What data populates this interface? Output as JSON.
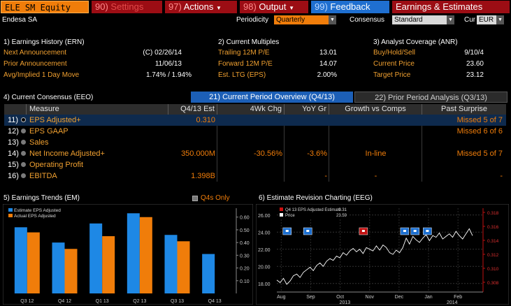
{
  "toolbar": {
    "ticker": "ELE SM Equity",
    "settings_num": "90)",
    "settings_label": "Settings",
    "actions_num": "97)",
    "actions_label": "Actions",
    "output_num": "98)",
    "output_label": "Output",
    "feedback_num": "99)",
    "feedback_label": "Feedback",
    "title": "Earnings & Estimates"
  },
  "company": "Endesa SA",
  "controls": {
    "periodicity_label": "Periodicity",
    "periodicity_value": "Quarterly",
    "consensus_label": "Consensus",
    "consensus_value": "Standard",
    "cur_label": "Cur",
    "cur_value": "EUR"
  },
  "ern": {
    "title": "1) Earnings History (ERN)",
    "rows": [
      {
        "label": "Next Announcement",
        "value": "(C)  02/26/14"
      },
      {
        "label": "Prior Announcement",
        "value": "11/06/13"
      },
      {
        "label": "Avg/Implied 1 Day Move",
        "value": "1.74% / 1.94%"
      }
    ]
  },
  "multiples": {
    "title": "2) Current Multiples",
    "rows": [
      {
        "label": "Trailing 12M P/E",
        "value": "13.01"
      },
      {
        "label": "Forward 12M P/E",
        "value": "14.07"
      },
      {
        "label": "Est. LTG (EPS)",
        "value": "2.00%"
      }
    ]
  },
  "anr": {
    "title": "3) Analyst Coverage (ANR)",
    "rows": [
      {
        "label": "Buy/Hold/Sell",
        "value": "9/10/4"
      },
      {
        "label": "Current Price",
        "value": "23.60"
      },
      {
        "label": "Target Price",
        "value": "23.12"
      }
    ]
  },
  "consensus": {
    "title": "4) Current Consensus (EEO)",
    "tab1": "21) Current Period Overview (Q4/13)",
    "tab2": "22) Prior Period Analysis (Q3/13)",
    "headers": [
      "Measure",
      "Q4/13 Est",
      "4Wk Chg",
      "YoY Gr",
      "Growth vs Comps",
      "Past Surprise"
    ],
    "rows": [
      {
        "num": "11)",
        "measure": "EPS Adjusted+",
        "est": "0.310",
        "chg": "",
        "yoy": "",
        "comps": "",
        "surprise": "Missed 5 of 7"
      },
      {
        "num": "12)",
        "measure": "EPS GAAP",
        "est": "",
        "chg": "",
        "yoy": "",
        "comps": "",
        "surprise": "Missed 6 of 6"
      },
      {
        "num": "13)",
        "measure": "Sales",
        "est": "",
        "chg": "",
        "yoy": "",
        "comps": "",
        "surprise": ""
      },
      {
        "num": "14)",
        "measure": "Net Income Adjusted+",
        "est": "350.000M",
        "chg": "-30.56%",
        "yoy": "-3.6%",
        "comps": "In-line",
        "surprise": "Missed 5 of 7"
      },
      {
        "num": "15)",
        "measure": "Operating Profit",
        "est": "",
        "chg": "",
        "yoy": "",
        "comps": "",
        "surprise": ""
      },
      {
        "num": "16)",
        "measure": "EBITDA",
        "est": "1.398B",
        "chg": "",
        "yoy": "-",
        "comps": "-",
        "surprise": "-"
      }
    ]
  },
  "trends": {
    "title": "5) Earnings Trends (EM)",
    "q4_only": "Q4s Only"
  },
  "revision": {
    "title": "6) Estimate Revision Charting (EEG)"
  },
  "chart_data": [
    {
      "type": "bar",
      "categories": [
        "Q3 12",
        "Q4 12",
        "Q1 13",
        "Q2 13",
        "Q3 13",
        "Q4 13"
      ],
      "series": [
        {
          "name": "Estimate EPS Adjusted",
          "color": "#1e88e5",
          "values": [
            0.52,
            0.4,
            0.55,
            0.63,
            0.46,
            0.31
          ]
        },
        {
          "name": "Actual EPS Adjusted",
          "color": "#f07d0a",
          "values": [
            0.48,
            0.35,
            0.45,
            0.6,
            0.41,
            null
          ]
        }
      ],
      "yticks": [
        "0.60",
        "0.50",
        "0.40",
        "0.30",
        "0.20",
        "0.10"
      ],
      "ylim": [
        0.0,
        0.67
      ],
      "legend": "top-left",
      "grid": false
    },
    {
      "type": "line",
      "legend_items": [
        {
          "name": "Q4 13 EPS Adjusted Estimate",
          "value": "0.31",
          "color": "#d01010"
        },
        {
          "name": "Price",
          "value": "23.59",
          "color": "#ffffff"
        }
      ],
      "left_ticks": [
        "26.00",
        "24.00",
        "22.00",
        "20.00",
        "18.00"
      ],
      "right_ticks": [
        "0.318",
        "0.316",
        "0.314",
        "0.312",
        "0.310",
        "0.308"
      ],
      "x_months": [
        "Aug",
        "Sep",
        "Oct",
        "Nov",
        "Dec",
        "Jan",
        "Feb"
      ],
      "x_years": [
        "2013",
        "2014"
      ],
      "ylim_left": [
        17,
        26.8
      ],
      "price_series": [
        18.4,
        18.1,
        18.6,
        17.9,
        18.3,
        18.9,
        19.1,
        18.7,
        19.3,
        19.6,
        19.9,
        19.5,
        20.1,
        20.4,
        20.0,
        20.6,
        20.9,
        20.7,
        21.2,
        21.0,
        21.6,
        21.3,
        21.8,
        22.1,
        21.7,
        22.0,
        21.5,
        22.2,
        22.0,
        21.8,
        22.4,
        21.9,
        22.5,
        22.2,
        21.6,
        21.4,
        21.9,
        21.6,
        22.2,
        23.3,
        22.6,
        23.5,
        23.1,
        22.8,
        23.3,
        23.7,
        23.0,
        23.6,
        23.4,
        23.9,
        23.2,
        23.5,
        23.8,
        23.4,
        24.1,
        23.6,
        23.2,
        23.8,
        24.4,
        23.59
      ],
      "event_markers": [
        {
          "x": 0.05,
          "color": "blue"
        },
        {
          "x": 0.15,
          "color": "blue"
        },
        {
          "x": 0.42,
          "color": "red"
        },
        {
          "x": 0.62,
          "color": "blue"
        },
        {
          "x": 0.67,
          "color": "blue"
        },
        {
          "x": 0.73,
          "color": "blue"
        }
      ]
    }
  ]
}
